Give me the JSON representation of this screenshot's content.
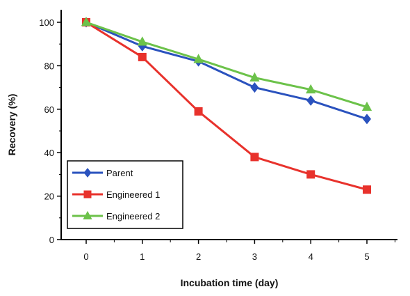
{
  "chart_data": {
    "type": "line",
    "title": "",
    "xlabel": "Incubation time (day)",
    "ylabel": "Recovery (%)",
    "x": [
      0,
      1,
      2,
      3,
      4,
      5
    ],
    "xticks": [
      "0",
      "1",
      "2",
      "3",
      "4",
      "5"
    ],
    "yticks": [
      "0",
      "20",
      "40",
      "60",
      "80",
      "100"
    ],
    "ylim": [
      0,
      104
    ],
    "grid": false,
    "legend_position": "bottom-left",
    "series": [
      {
        "name": "Parent",
        "values": [
          100,
          89,
          82,
          70,
          64,
          55.5
        ],
        "color": "#2a52be",
        "marker": "diamond"
      },
      {
        "name": "Engineered 1",
        "values": [
          100,
          84,
          59,
          38,
          30,
          23
        ],
        "color": "#e8322c",
        "marker": "square"
      },
      {
        "name": "Engineered 2",
        "values": [
          100,
          91,
          83,
          74.5,
          69,
          61
        ],
        "color": "#6cc24a",
        "marker": "triangle"
      }
    ]
  }
}
